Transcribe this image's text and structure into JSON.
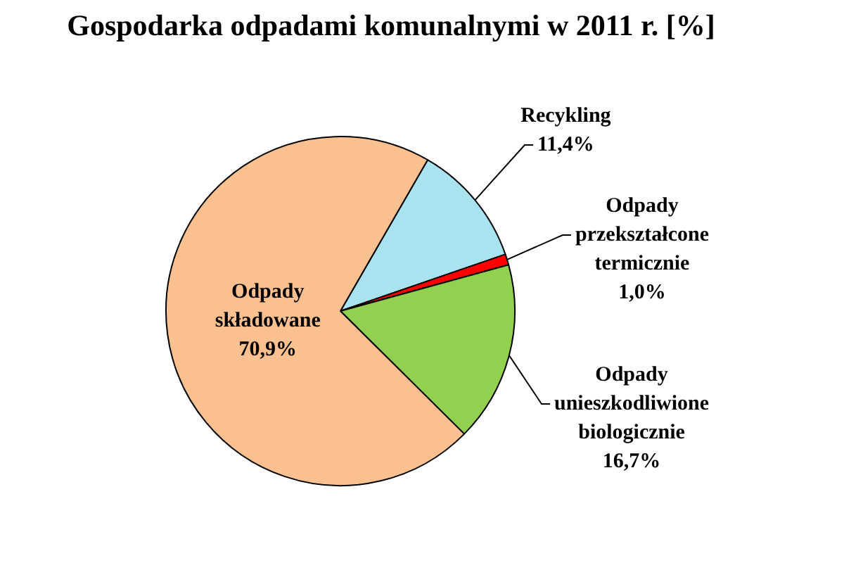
{
  "chart_data": {
    "type": "pie",
    "title": "Gospodarka odpadami komunalnymi w 2011 r. [%]",
    "categories": [
      "Recykling",
      "Odpady przekształcone termicznie",
      "Odpady unieszkodliwione biologicznie",
      "Odpady składowane"
    ],
    "values": [
      11.4,
      1.0,
      16.7,
      70.9
    ],
    "colors": [
      "#a9e3ef",
      "#ff0000",
      "#92d050",
      "#fac090"
    ],
    "value_labels": [
      "11,4%",
      "1,0%",
      "16,7%",
      "70,9%"
    ]
  }
}
